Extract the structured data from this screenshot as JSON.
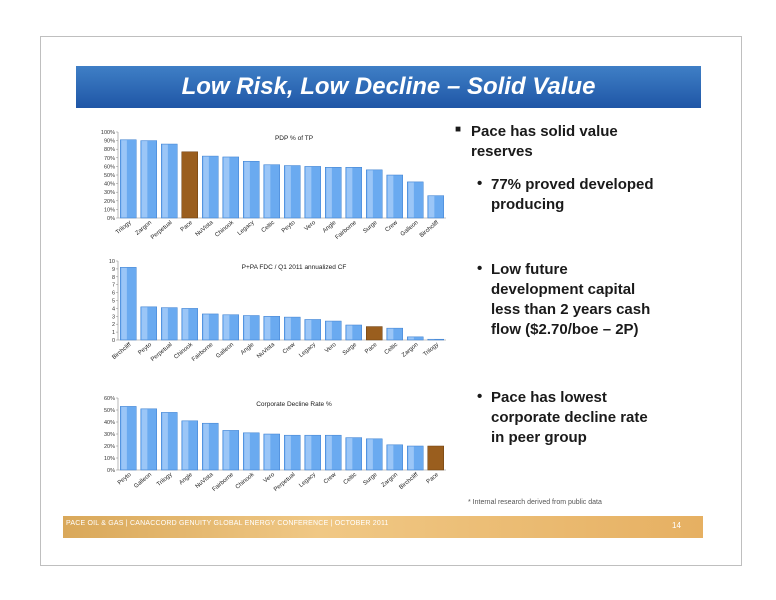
{
  "slide": {
    "title": "Low Risk, Low Decline – Solid Value",
    "bullets": {
      "main": [
        "Pace has solid value",
        "reserves"
      ],
      "sub1": [
        "77% proved developed",
        "producing"
      ],
      "sub2": [
        "Low future",
        "development capital",
        "less than 2 years cash",
        "flow ($2.70/boe – 2P)"
      ],
      "sub3": [
        "Pace has lowest",
        "corporate decline rate",
        "in peer group"
      ]
    },
    "footnote": "* Internal research derived from public data",
    "footer": "PACE OIL & GAS  |  CANACCORD GENUITY GLOBAL ENERGY CONFERENCE  |  OCTOBER 2011",
    "page_number": "14"
  },
  "colors": {
    "bar": "#6aaaf0",
    "highlight": "#9a5e1e",
    "banner": "#2a64b0",
    "footer": "#e8b56b"
  },
  "chart_data": [
    {
      "type": "bar",
      "title": "PDP % of TP",
      "categories": [
        "Trilogy",
        "Zargon",
        "Perpetual",
        "Pace",
        "NuVista",
        "Chinook",
        "Legacy",
        "Celtic",
        "Peyto",
        "Vero",
        "Angle",
        "Fairborne",
        "Surge",
        "Crew",
        "Galleon",
        "Birchcliff"
      ],
      "values": [
        91,
        90,
        86,
        77,
        72,
        71,
        66,
        62,
        61,
        60,
        59,
        59,
        56,
        50,
        42,
        26
      ],
      "highlight": "Pace",
      "ylim": [
        0,
        100
      ],
      "yticks": [
        "0%",
        "10%",
        "20%",
        "30%",
        "40%",
        "50%",
        "60%",
        "70%",
        "80%",
        "90%",
        "100%"
      ]
    },
    {
      "type": "bar",
      "title": "P+PA FDC / Q1 2011 annualized CF",
      "categories": [
        "Birchcliff",
        "Peyto",
        "Perpetual",
        "Chinook",
        "Fairborne",
        "Galleon",
        "Angle",
        "NuVista",
        "Crew",
        "Legacy",
        "Vero",
        "Surge",
        "Pace",
        "Celtic",
        "Zargon",
        "Trilogy"
      ],
      "values": [
        9.2,
        4.2,
        4.1,
        4.0,
        3.3,
        3.2,
        3.1,
        3.0,
        2.9,
        2.6,
        2.4,
        1.9,
        1.7,
        1.5,
        0.4,
        0.1
      ],
      "highlight": "Pace",
      "ylim": [
        0,
        10
      ],
      "yticks": [
        "0",
        "1",
        "2",
        "3",
        "4",
        "5",
        "6",
        "7",
        "8",
        "9",
        "10"
      ]
    },
    {
      "type": "bar",
      "title": "Corporate Decline Rate %",
      "categories": [
        "Peyto",
        "Galleon",
        "Trilogy",
        "Angle",
        "NuVista",
        "Fairborne",
        "Chinook",
        "Vero",
        "Perpetual",
        "Legacy",
        "Crew",
        "Celtic",
        "Surge",
        "Zargon",
        "Birchcliff",
        "Pace"
      ],
      "values": [
        53,
        51,
        48,
        41,
        39,
        33,
        31,
        30,
        29,
        29,
        29,
        27,
        26,
        21,
        20,
        20
      ],
      "highlight": "Pace",
      "ylim": [
        0,
        60
      ],
      "yticks": [
        "0%",
        "10%",
        "20%",
        "30%",
        "40%",
        "50%",
        "60%"
      ]
    }
  ]
}
